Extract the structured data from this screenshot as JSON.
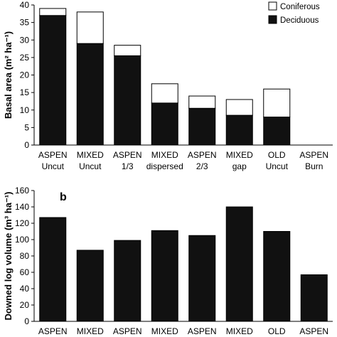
{
  "colors": {
    "deciduous": "#111111",
    "coniferous": "#ffffff",
    "bar_single": "#111111",
    "axis": "#000000"
  },
  "chart_data": [
    {
      "type": "bar",
      "panel_label": "",
      "stacked": true,
      "categories": [
        [
          "ASPEN",
          "Uncut"
        ],
        [
          "MIXED",
          "Uncut"
        ],
        [
          "ASPEN",
          "1/3"
        ],
        [
          "MIXED",
          "dispersed"
        ],
        [
          "ASPEN",
          "2/3"
        ],
        [
          "MIXED",
          "gap"
        ],
        [
          "OLD",
          "Uncut"
        ],
        [
          "ASPEN",
          "Burn"
        ]
      ],
      "series": [
        {
          "name": "Deciduous",
          "values": [
            37,
            29,
            25.5,
            12,
            10.5,
            8.5,
            8,
            0
          ]
        },
        {
          "name": "Coniferous",
          "values": [
            2,
            9,
            3,
            5.5,
            3.5,
            4.5,
            8,
            0
          ]
        }
      ],
      "ylabel": "Basal area (m² ha⁻¹)",
      "ylim": [
        0,
        40
      ],
      "yticks": [
        0,
        5,
        10,
        15,
        20,
        25,
        30,
        35,
        40
      ],
      "legend_position": "top-right",
      "legend_order": [
        "Coniferous",
        "Deciduous"
      ]
    },
    {
      "type": "bar",
      "panel_label": "b",
      "categories": [
        [
          "ASPEN"
        ],
        [
          "MIXED"
        ],
        [
          "ASPEN"
        ],
        [
          "MIXED"
        ],
        [
          "ASPEN"
        ],
        [
          "MIXED"
        ],
        [
          "OLD"
        ],
        [
          "ASPEN"
        ]
      ],
      "values": [
        127,
        87,
        99,
        111,
        105,
        140,
        110,
        57
      ],
      "ylabel": "Downed log volume (m³ ha⁻¹)",
      "ylim": [
        0,
        160
      ],
      "yticks": [
        0,
        20,
        40,
        60,
        80,
        100,
        120,
        140,
        160
      ]
    }
  ]
}
